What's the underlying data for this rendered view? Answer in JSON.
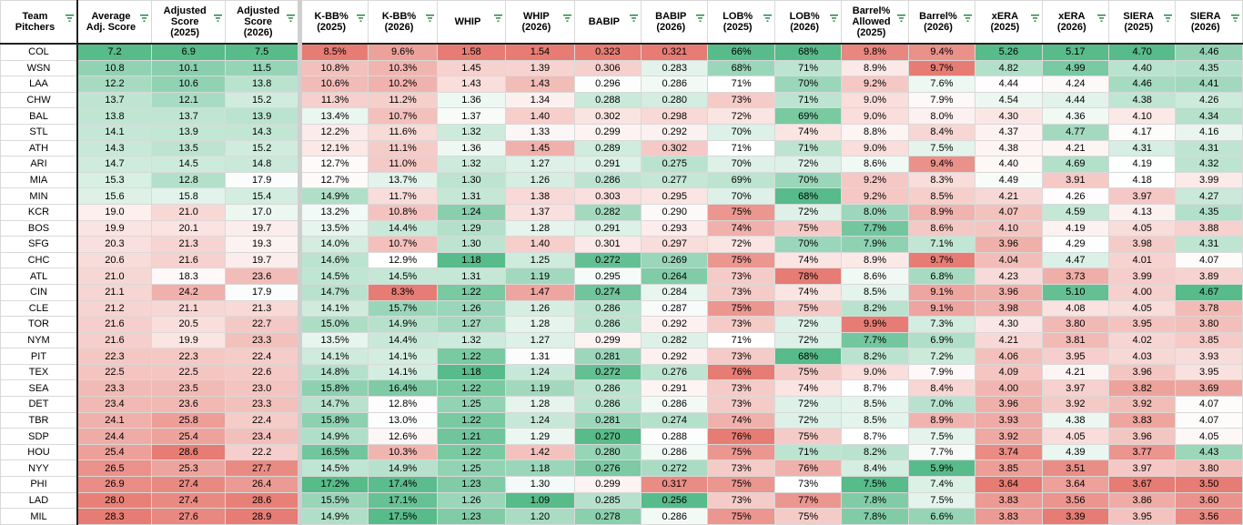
{
  "headers": [
    [
      "Team",
      "Pitchers"
    ],
    [
      "Average",
      "Adj. Score"
    ],
    [
      "Adjusted",
      "Score",
      "(2025)"
    ],
    [
      "Adjusted",
      "Score",
      "(2026)"
    ],
    [
      "K-BB%",
      "(2025)"
    ],
    [
      "K-BB%",
      "(2026)"
    ],
    [
      "WHIP"
    ],
    [
      "WHIP",
      "(2026)"
    ],
    [
      "BABIP"
    ],
    [
      "BABIP",
      "(2026)"
    ],
    [
      "LOB%",
      "(2025)"
    ],
    [
      "LOB%",
      "(2026)"
    ],
    [
      "Barrel%",
      "Allowed",
      "(2025)"
    ],
    [
      "Barrel%",
      "(2026)"
    ],
    [
      "xERA",
      "(2025)"
    ],
    [
      "xERA",
      "(2026)"
    ],
    [
      "SIERA",
      "(2025)"
    ],
    [
      "SIERA",
      "(2026)"
    ]
  ],
  "colors": {
    "green": "#57bb8a",
    "white": "#ffffff",
    "red": "#e67c73"
  },
  "rows": [
    [
      "COL",
      "7.2",
      "6.9",
      "7.5",
      "8.5%",
      "9.6%",
      "1.58",
      "1.54",
      "0.323",
      "0.321",
      "66%",
      "68%",
      "9.8%",
      "9.4%",
      "5.26",
      "5.17",
      "4.70",
      "4.46"
    ],
    [
      "WSN",
      "10.8",
      "10.1",
      "11.5",
      "10.8%",
      "10.3%",
      "1.45",
      "1.39",
      "0.306",
      "0.283",
      "68%",
      "71%",
      "8.9%",
      "9.7%",
      "4.82",
      "4.99",
      "4.40",
      "4.35"
    ],
    [
      "LAA",
      "12.2",
      "10.6",
      "13.8",
      "10.6%",
      "10.2%",
      "1.43",
      "1.43",
      "0.296",
      "0.286",
      "71%",
      "70%",
      "9.2%",
      "7.6%",
      "4.44",
      "4.24",
      "4.46",
      "4.41"
    ],
    [
      "CHW",
      "13.7",
      "12.1",
      "15.2",
      "11.3%",
      "11.2%",
      "1.36",
      "1.34",
      "0.288",
      "0.280",
      "73%",
      "71%",
      "9.0%",
      "7.9%",
      "4.54",
      "4.44",
      "4.38",
      "4.26"
    ],
    [
      "BAL",
      "13.8",
      "13.7",
      "13.9",
      "13.4%",
      "10.7%",
      "1.37",
      "1.40",
      "0.302",
      "0.298",
      "72%",
      "69%",
      "9.0%",
      "8.0%",
      "4.30",
      "4.36",
      "4.10",
      "4.34"
    ],
    [
      "STL",
      "14.1",
      "13.9",
      "14.3",
      "12.2%",
      "11.6%",
      "1.32",
      "1.33",
      "0.299",
      "0.292",
      "70%",
      "74%",
      "8.8%",
      "8.4%",
      "4.37",
      "4.77",
      "4.17",
      "4.16"
    ],
    [
      "ATH",
      "14.3",
      "13.5",
      "15.2",
      "12.1%",
      "11.1%",
      "1.36",
      "1.45",
      "0.289",
      "0.302",
      "71%",
      "71%",
      "9.0%",
      "7.5%",
      "4.38",
      "4.21",
      "4.31",
      "4.31"
    ],
    [
      "ARI",
      "14.7",
      "14.5",
      "14.8",
      "12.7%",
      "11.0%",
      "1.32",
      "1.27",
      "0.291",
      "0.275",
      "70%",
      "72%",
      "8.6%",
      "9.4%",
      "4.40",
      "4.69",
      "4.19",
      "4.32"
    ],
    [
      "MIA",
      "15.3",
      "12.8",
      "17.9",
      "12.7%",
      "13.7%",
      "1.30",
      "1.26",
      "0.286",
      "0.277",
      "69%",
      "70%",
      "9.2%",
      "8.3%",
      "4.49",
      "3.91",
      "4.18",
      "3.99"
    ],
    [
      "MIN",
      "15.6",
      "15.8",
      "15.4",
      "14.9%",
      "11.7%",
      "1.31",
      "1.38",
      "0.303",
      "0.295",
      "70%",
      "68%",
      "9.2%",
      "8.5%",
      "4.21",
      "4.26",
      "3.97",
      "4.27"
    ],
    [
      "KCR",
      "19.0",
      "21.0",
      "17.0",
      "13.2%",
      "10.8%",
      "1.24",
      "1.37",
      "0.282",
      "0.290",
      "75%",
      "72%",
      "8.0%",
      "8.9%",
      "4.07",
      "4.59",
      "4.13",
      "4.35"
    ],
    [
      "BOS",
      "19.9",
      "20.1",
      "19.7",
      "13.5%",
      "14.4%",
      "1.29",
      "1.28",
      "0.291",
      "0.293",
      "74%",
      "75%",
      "7.7%",
      "8.6%",
      "4.10",
      "4.19",
      "4.05",
      "3.88"
    ],
    [
      "SFG",
      "20.3",
      "21.3",
      "19.3",
      "14.0%",
      "10.7%",
      "1.30",
      "1.40",
      "0.301",
      "0.297",
      "72%",
      "70%",
      "7.9%",
      "7.1%",
      "3.96",
      "4.29",
      "3.98",
      "4.31"
    ],
    [
      "CHC",
      "20.6",
      "21.6",
      "19.7",
      "14.6%",
      "12.9%",
      "1.18",
      "1.25",
      "0.272",
      "0.269",
      "75%",
      "74%",
      "8.9%",
      "9.7%",
      "4.04",
      "4.47",
      "4.01",
      "4.07"
    ],
    [
      "ATL",
      "21.0",
      "18.3",
      "23.6",
      "14.5%",
      "14.5%",
      "1.31",
      "1.19",
      "0.295",
      "0.264",
      "73%",
      "78%",
      "8.6%",
      "6.8%",
      "4.23",
      "3.73",
      "3.99",
      "3.89"
    ],
    [
      "CIN",
      "21.1",
      "24.2",
      "17.9",
      "14.7%",
      "8.3%",
      "1.22",
      "1.47",
      "0.274",
      "0.284",
      "73%",
      "74%",
      "8.5%",
      "9.1%",
      "3.96",
      "5.10",
      "4.00",
      "4.67"
    ],
    [
      "CLE",
      "21.2",
      "21.1",
      "21.3",
      "14.1%",
      "15.7%",
      "1.26",
      "1.26",
      "0.286",
      "0.287",
      "75%",
      "75%",
      "8.2%",
      "9.1%",
      "3.98",
      "4.08",
      "4.05",
      "3.78"
    ],
    [
      "TOR",
      "21.6",
      "20.5",
      "22.7",
      "15.0%",
      "14.9%",
      "1.27",
      "1.28",
      "0.286",
      "0.292",
      "73%",
      "72%",
      "9.9%",
      "7.3%",
      "4.30",
      "3.80",
      "3.95",
      "3.80"
    ],
    [
      "NYM",
      "21.6",
      "19.9",
      "23.3",
      "13.5%",
      "14.4%",
      "1.32",
      "1.27",
      "0.299",
      "0.282",
      "71%",
      "72%",
      "7.7%",
      "6.9%",
      "4.21",
      "3.81",
      "4.02",
      "3.85"
    ],
    [
      "PIT",
      "22.3",
      "22.3",
      "22.4",
      "14.1%",
      "14.1%",
      "1.22",
      "1.31",
      "0.281",
      "0.292",
      "73%",
      "68%",
      "8.2%",
      "7.2%",
      "4.06",
      "3.95",
      "4.03",
      "3.93"
    ],
    [
      "TEX",
      "22.5",
      "22.5",
      "22.6",
      "14.8%",
      "14.1%",
      "1.18",
      "1.24",
      "0.272",
      "0.276",
      "76%",
      "75%",
      "9.0%",
      "7.9%",
      "4.09",
      "4.21",
      "3.96",
      "3.95"
    ],
    [
      "SEA",
      "23.3",
      "23.5",
      "23.0",
      "15.8%",
      "16.4%",
      "1.22",
      "1.19",
      "0.286",
      "0.291",
      "73%",
      "74%",
      "8.7%",
      "8.4%",
      "4.00",
      "3.97",
      "3.82",
      "3.69"
    ],
    [
      "DET",
      "23.4",
      "23.6",
      "23.3",
      "14.7%",
      "12.8%",
      "1.25",
      "1.28",
      "0.286",
      "0.286",
      "73%",
      "72%",
      "8.5%",
      "7.0%",
      "3.96",
      "3.92",
      "3.92",
      "4.07"
    ],
    [
      "TBR",
      "24.1",
      "25.8",
      "22.4",
      "15.8%",
      "13.0%",
      "1.22",
      "1.24",
      "0.281",
      "0.274",
      "74%",
      "72%",
      "8.5%",
      "8.9%",
      "3.93",
      "4.38",
      "3.83",
      "4.07"
    ],
    [
      "SDP",
      "24.4",
      "25.4",
      "23.4",
      "14.9%",
      "12.6%",
      "1.21",
      "1.29",
      "0.270",
      "0.288",
      "76%",
      "75%",
      "8.7%",
      "7.5%",
      "3.92",
      "4.05",
      "3.96",
      "4.05"
    ],
    [
      "HOU",
      "25.4",
      "28.6",
      "22.2",
      "16.5%",
      "10.3%",
      "1.22",
      "1.42",
      "0.280",
      "0.286",
      "75%",
      "71%",
      "8.2%",
      "7.7%",
      "3.74",
      "4.39",
      "3.77",
      "4.43"
    ],
    [
      "NYY",
      "26.5",
      "25.3",
      "27.7",
      "14.5%",
      "14.9%",
      "1.25",
      "1.18",
      "0.276",
      "0.272",
      "73%",
      "76%",
      "8.4%",
      "5.9%",
      "3.85",
      "3.51",
      "3.97",
      "3.80"
    ],
    [
      "PHI",
      "26.9",
      "27.4",
      "26.4",
      "17.2%",
      "17.4%",
      "1.23",
      "1.30",
      "0.299",
      "0.317",
      "75%",
      "73%",
      "7.5%",
      "7.4%",
      "3.64",
      "3.64",
      "3.67",
      "3.50"
    ],
    [
      "LAD",
      "28.0",
      "27.4",
      "28.6",
      "15.5%",
      "17.1%",
      "1.26",
      "1.09",
      "0.285",
      "0.256",
      "73%",
      "77%",
      "7.8%",
      "7.5%",
      "3.83",
      "3.56",
      "3.86",
      "3.60"
    ],
    [
      "MIL",
      "28.3",
      "27.6",
      "28.9",
      "14.9%",
      "17.5%",
      "1.23",
      "1.20",
      "0.278",
      "0.286",
      "75%",
      "75%",
      "7.8%",
      "6.6%",
      "3.83",
      "3.39",
      "3.95",
      "3.56"
    ]
  ]
}
